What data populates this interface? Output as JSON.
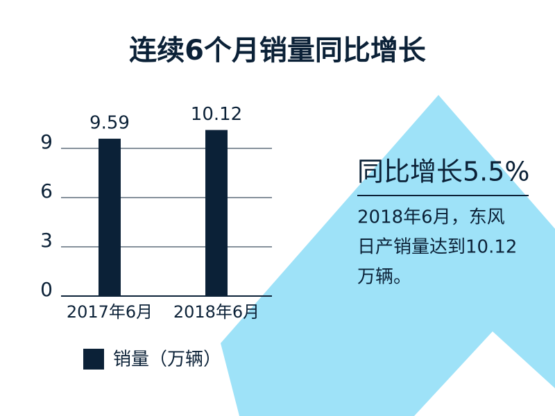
{
  "chart_data": {
    "type": "bar",
    "title": "连续6个月销量同比增长",
    "categories": [
      "2017年6月",
      "2018年6月"
    ],
    "series": [
      {
        "name": "销量（万辆）",
        "color": "#0b2137",
        "values": [
          9.59,
          10.12
        ]
      }
    ],
    "ylim": [
      0,
      12
    ],
    "yticks": [
      0,
      3,
      6,
      9
    ],
    "grid": true
  },
  "annotation": {
    "heading": "同比增长5.5%",
    "lines": [
      "2018年6月，东风",
      "日产销量达到10.12",
      "万辆。"
    ]
  }
}
